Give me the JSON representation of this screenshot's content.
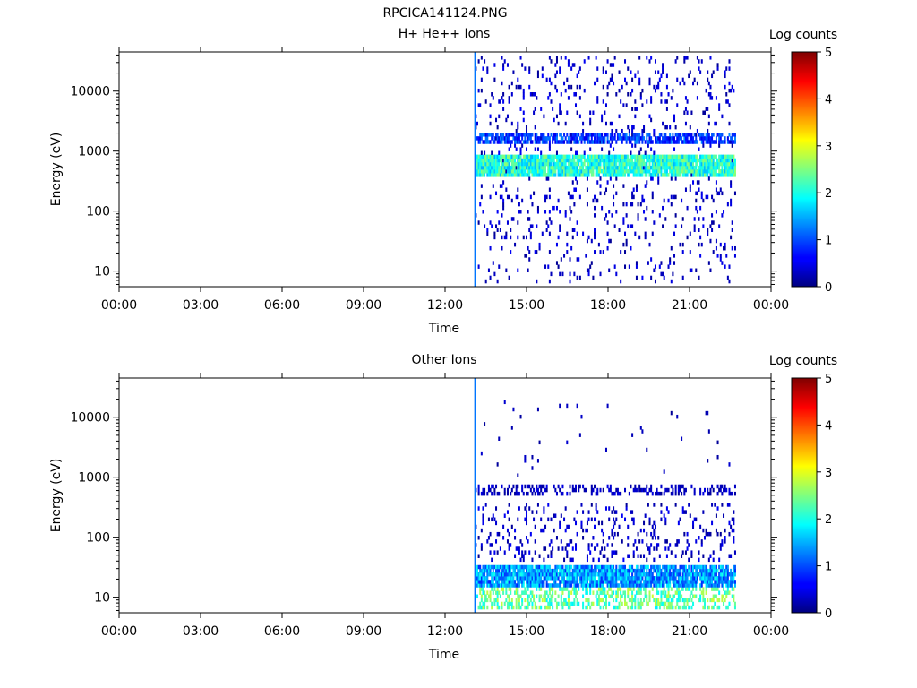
{
  "figure_title": "RPCICA141124.PNG",
  "chart_data": [
    {
      "type": "heatmap",
      "title": "H+ He++ Ions",
      "xlabel": "Time",
      "ylabel": "Energy (eV)",
      "x_ticks": [
        "00:00",
        "03:00",
        "06:00",
        "09:00",
        "12:00",
        "15:00",
        "18:00",
        "21:00",
        "00:00"
      ],
      "xlim_hours": [
        0,
        24
      ],
      "y_scale": "log",
      "y_ticks": [
        10,
        100,
        1000,
        10000
      ],
      "y_tick_labels": [
        "10",
        "100",
        "1000",
        "10000"
      ],
      "ylim": [
        5.5,
        45000
      ],
      "data_window_hours": [
        13.1,
        22.7
      ],
      "colorbar": {
        "label": "Log counts",
        "range": [
          0,
          5
        ],
        "ticks": [
          "0",
          "1",
          "2",
          "3",
          "4",
          "5"
        ]
      },
      "bands": [
        {
          "energy_eV": [
            390,
            900
          ],
          "log_counts": [
            1.5,
            2.6
          ],
          "density": 0.95
        },
        {
          "energy_eV": [
            1300,
            2000
          ],
          "log_counts": [
            0.5,
            1.3
          ],
          "density": 0.7
        },
        {
          "energy_eV": [
            6,
            40000
          ],
          "log_counts": [
            0.1,
            0.6
          ],
          "density": 0.08
        }
      ]
    },
    {
      "type": "heatmap",
      "title": "Other Ions",
      "xlabel": "Time",
      "ylabel": "Energy (eV)",
      "x_ticks": [
        "00:00",
        "03:00",
        "06:00",
        "09:00",
        "12:00",
        "15:00",
        "18:00",
        "21:00",
        "00:00"
      ],
      "xlim_hours": [
        0,
        24
      ],
      "y_scale": "log",
      "y_ticks": [
        10,
        100,
        1000,
        10000
      ],
      "y_tick_labels": [
        "10",
        "100",
        "1000",
        "10000"
      ],
      "ylim": [
        5.5,
        45000
      ],
      "data_window_hours": [
        13.1,
        22.7
      ],
      "colorbar": {
        "label": "Log counts",
        "range": [
          0,
          5
        ],
        "ticks": [
          "0",
          "1",
          "2",
          "3",
          "4",
          "5"
        ]
      },
      "bands": [
        {
          "energy_eV": [
            15,
            32
          ],
          "log_counts": [
            0.8,
            2.0
          ],
          "density": 0.9
        },
        {
          "energy_eV": [
            6,
            15
          ],
          "log_counts": [
            1.8,
            2.9
          ],
          "density": 0.45
        },
        {
          "energy_eV": [
            500,
            800
          ],
          "log_counts": [
            0.1,
            0.5
          ],
          "density": 0.35
        },
        {
          "energy_eV": [
            40,
            400
          ],
          "log_counts": [
            0.1,
            0.6
          ],
          "density": 0.12
        },
        {
          "energy_eV": [
            1000,
            20000
          ],
          "log_counts": [
            0.1,
            0.4
          ],
          "density": 0.01
        }
      ]
    }
  ]
}
